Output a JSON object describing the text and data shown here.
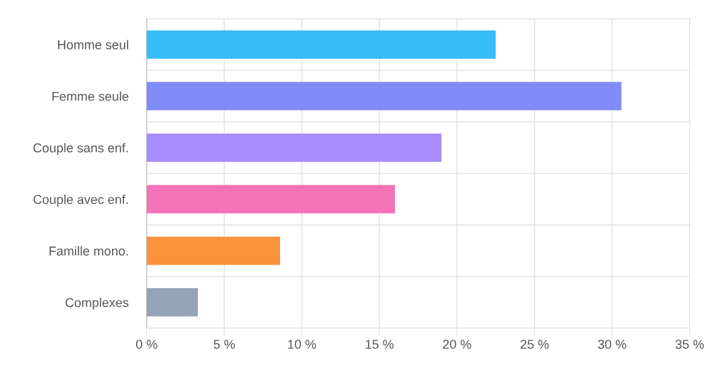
{
  "chart_data": {
    "type": "bar",
    "orientation": "horizontal",
    "categories": [
      "Homme seul",
      "Femme seule",
      "Couple sans enf.",
      "Couple avec enf.",
      "Famille mono.",
      "Complexes"
    ],
    "values": [
      22.5,
      30.6,
      19.0,
      16.0,
      8.6,
      3.3
    ],
    "colors": [
      "#38bdf8",
      "#818cf8",
      "#a78bfa",
      "#f472b6",
      "#fb923c",
      "#94a3b8"
    ],
    "xlim": [
      0,
      35
    ],
    "xticks": [
      {
        "value": 0,
        "label": "0 %"
      },
      {
        "value": 5,
        "label": "5 %"
      },
      {
        "value": 10,
        "label": "10 %"
      },
      {
        "value": 15,
        "label": "15 %"
      },
      {
        "value": 20,
        "label": "20 %"
      },
      {
        "value": 25,
        "label": "25 %"
      },
      {
        "value": 30,
        "label": "30 %"
      },
      {
        "value": 35,
        "label": "35 %"
      }
    ],
    "grid": true
  }
}
